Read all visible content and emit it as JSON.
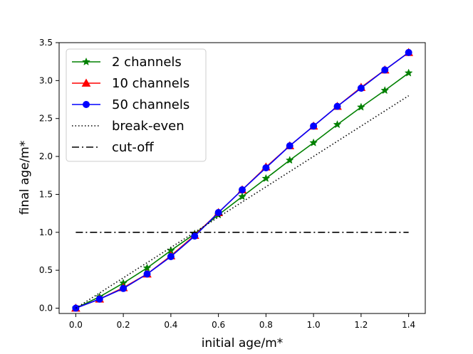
{
  "chart_data": {
    "type": "line",
    "title": "",
    "xlabel": "initial age/m*",
    "ylabel": "final age/m*",
    "xlim": [
      -0.07,
      1.47
    ],
    "ylim": [
      -0.07,
      3.5
    ],
    "xticks": [
      0.0,
      0.2,
      0.4,
      0.6,
      0.8,
      1.0,
      1.2,
      1.4
    ],
    "xtick_labels": [
      "0.0",
      "0.2",
      "0.4",
      "0.6",
      "0.8",
      "1.0",
      "1.2",
      "1.4"
    ],
    "yticks": [
      0.0,
      0.5,
      1.0,
      1.5,
      2.0,
      2.5,
      3.0,
      3.5
    ],
    "ytick_labels": [
      "0.0",
      "0.5",
      "1.0",
      "1.5",
      "2.0",
      "2.5",
      "3.0",
      "3.5"
    ],
    "grid": false,
    "legend_position": "top-left",
    "x": [
      0.0,
      0.1,
      0.2,
      0.3,
      0.4,
      0.5,
      0.6,
      0.7,
      0.8,
      0.9,
      1.0,
      1.1,
      1.2,
      1.3,
      1.4
    ],
    "series": [
      {
        "name": "2 channels",
        "color": "#008000",
        "marker": "star",
        "dash": "solid",
        "values": [
          0.0,
          0.15,
          0.33,
          0.53,
          0.76,
          0.98,
          1.23,
          1.47,
          1.71,
          1.95,
          2.18,
          2.42,
          2.65,
          2.87,
          3.1
        ]
      },
      {
        "name": "10 channels",
        "color": "#ff0000",
        "marker": "triangle",
        "dash": "solid",
        "values": [
          0.0,
          0.12,
          0.27,
          0.45,
          0.69,
          0.96,
          1.26,
          1.56,
          1.86,
          2.14,
          2.4,
          2.66,
          2.91,
          3.14,
          3.37
        ]
      },
      {
        "name": "50 channels",
        "color": "#0000ff",
        "marker": "circle",
        "dash": "solid",
        "values": [
          0.0,
          0.12,
          0.26,
          0.45,
          0.68,
          0.95,
          1.26,
          1.56,
          1.85,
          2.14,
          2.4,
          2.66,
          2.9,
          3.14,
          3.37
        ]
      },
      {
        "name": "break-even",
        "color": "#000000",
        "marker": "none",
        "dash": "dotted",
        "x": [
          0.0,
          1.4
        ],
        "values": [
          0.0,
          2.8
        ]
      },
      {
        "name": "cut-off",
        "color": "#000000",
        "marker": "none",
        "dash": "dashdot",
        "x": [
          0.0,
          1.4
        ],
        "values": [
          1.0,
          1.0
        ]
      }
    ]
  }
}
